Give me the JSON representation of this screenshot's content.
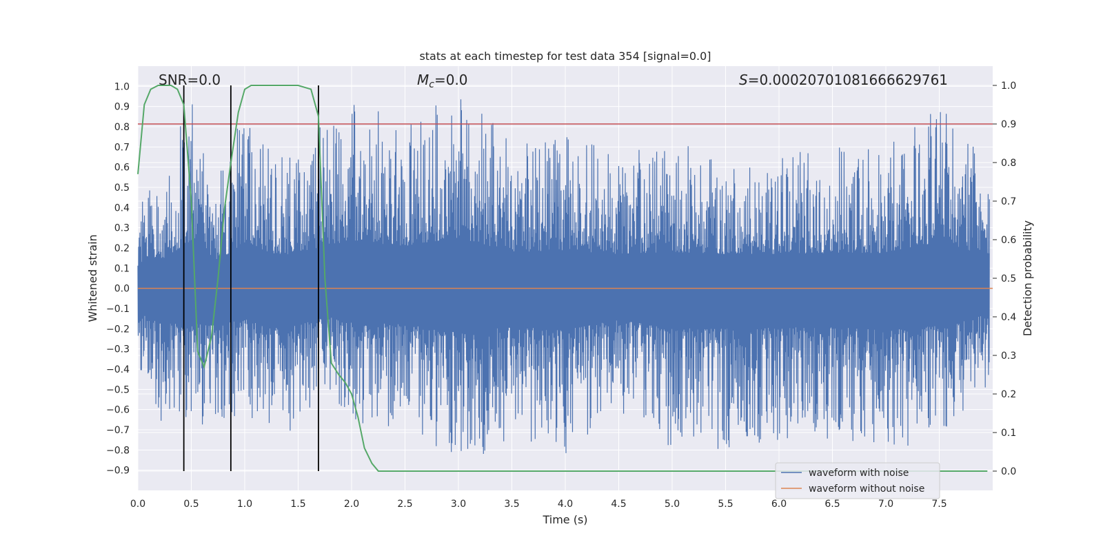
{
  "chart_data": {
    "type": "line",
    "title": "stats at each timestep for test data 354 [signal=0.0]",
    "xlabel": "Time (s)",
    "ylabel": "Whitened strain",
    "y2label": "Detection probability",
    "xlim": [
      0.0,
      8.0
    ],
    "ylim": [
      -1.0,
      1.1
    ],
    "y2lim": [
      -0.05,
      1.05
    ],
    "xticks": [
      "0.0",
      "0.5",
      "1.0",
      "1.5",
      "2.0",
      "2.5",
      "3.0",
      "3.5",
      "4.0",
      "4.5",
      "5.0",
      "5.5",
      "6.0",
      "6.5",
      "7.0",
      "7.5"
    ],
    "yticks": [
      "1.0",
      "0.9",
      "0.8",
      "0.7",
      "0.6",
      "0.5",
      "0.4",
      "0.3",
      "0.2",
      "0.1",
      "0.0",
      "-0.1",
      "-0.2",
      "-0.3",
      "-0.4",
      "-0.5",
      "-0.6",
      "-0.7",
      "-0.8",
      "-0.9"
    ],
    "y2ticks": [
      "1.0",
      "0.9",
      "0.8",
      "0.7",
      "0.6",
      "0.5",
      "0.4",
      "0.3",
      "0.2",
      "0.1",
      "0.0"
    ],
    "annotations": {
      "snr": "SNR=0.0",
      "mc_symbol": "M",
      "mc_sub": "c",
      "mc_value": "=0.0",
      "s_symbol": "S",
      "s_value": "=0.0002070108166662976‍1"
    },
    "legend": {
      "location": "lower right",
      "entries": [
        "waveform with noise",
        "waveform without noise"
      ]
    },
    "colors": {
      "noise": "#4c72b0",
      "clean": "#dd8452",
      "probability": "#55a868",
      "threshold": "#c44e52",
      "vlines": "#000000",
      "background": "#eaeaf2",
      "grid": "#ffffff"
    },
    "threshold": 0.9,
    "vlines": [
      0.43,
      0.87,
      1.69
    ],
    "noise_envelope": {
      "t": [
        0.0,
        0.25,
        0.5,
        0.75,
        1.0,
        1.25,
        1.5,
        1.75,
        2.0,
        2.5,
        3.0,
        3.5,
        4.0,
        4.5,
        5.0,
        5.5,
        6.0,
        6.5,
        7.0,
        7.5,
        8.0
      ],
      "peak": [
        0.45,
        0.6,
        0.95,
        0.55,
        0.91,
        0.7,
        0.65,
        0.85,
        0.93,
        0.84,
        1.0,
        0.72,
        0.75,
        0.68,
        0.72,
        0.68,
        0.68,
        0.7,
        0.7,
        0.92,
        0.6
      ],
      "trough": [
        -0.45,
        -0.7,
        -0.65,
        -0.73,
        -0.6,
        -0.77,
        -0.74,
        -0.55,
        -0.68,
        -0.71,
        -0.88,
        -0.76,
        -0.82,
        -0.62,
        -0.79,
        -0.8,
        -0.77,
        -0.76,
        -0.83,
        -0.74,
        -0.5
      ]
    },
    "series": [
      {
        "name": "waveform without noise",
        "x": [
          0.0,
          8.0
        ],
        "y": [
          0.0,
          0.0
        ]
      },
      {
        "name": "detection probability",
        "axis": "right",
        "x": [
          0.0,
          0.06,
          0.12,
          0.19,
          0.25,
          0.31,
          0.37,
          0.43,
          0.5,
          0.56,
          0.62,
          0.69,
          0.75,
          0.81,
          0.87,
          0.94,
          1.0,
          1.06,
          1.12,
          1.5,
          1.62,
          1.69,
          1.75,
          1.81,
          1.88,
          1.94,
          2.0,
          2.06,
          2.12,
          2.19,
          2.25,
          2.31,
          4.5,
          6.0,
          7.5,
          7.95
        ],
        "y": [
          0.77,
          0.95,
          0.99,
          1.0,
          1.0,
          1.0,
          0.99,
          0.95,
          0.7,
          0.31,
          0.27,
          0.35,
          0.5,
          0.68,
          0.8,
          0.93,
          0.99,
          1.0,
          1.0,
          1.0,
          0.99,
          0.92,
          0.5,
          0.28,
          0.25,
          0.23,
          0.2,
          0.14,
          0.06,
          0.02,
          0.0,
          0.0,
          0.0,
          0.0,
          0.0,
          0.0
        ]
      }
    ]
  }
}
